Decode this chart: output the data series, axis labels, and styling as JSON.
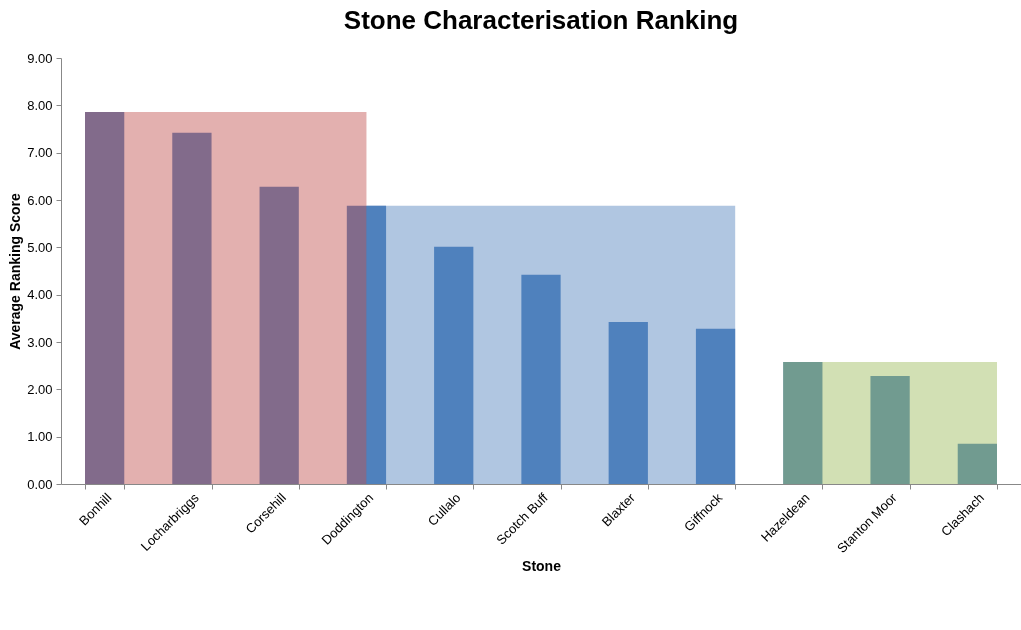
{
  "chart_data": {
    "type": "bar",
    "title": "Stone Characterisation Ranking",
    "xlabel": "Stone",
    "ylabel": "Average Ranking Score",
    "categories": [
      "Bonhill",
      "Locharbriggs",
      "Corsehill",
      "Doddington",
      "Cullalo",
      "Scotch Buff",
      "Blaxter",
      "Giffnock",
      "Hazeldean",
      "Stanton Moor",
      "Clashach"
    ],
    "values": [
      7.86,
      7.42,
      6.28,
      5.88,
      5.01,
      4.42,
      3.42,
      3.28,
      2.58,
      2.28,
      0.85
    ],
    "color": "#4f81bd",
    "ylim": [
      0,
      9
    ],
    "yticks": [
      {
        "value": 0,
        "label": "0.00"
      },
      {
        "value": 1,
        "label": "1.00"
      },
      {
        "value": 2,
        "label": "2.00"
      },
      {
        "value": 3,
        "label": "3.00"
      },
      {
        "value": 4,
        "label": "4.00"
      },
      {
        "value": 5,
        "label": "5.00"
      },
      {
        "value": 6,
        "label": "6.00"
      },
      {
        "value": 7,
        "label": "7.00"
      },
      {
        "value": 8,
        "label": "8.00"
      },
      {
        "value": 9,
        "label": "9.00"
      }
    ],
    "bands": [
      {
        "axis": "x",
        "from": "Bonhill",
        "to": "Doddington",
        "color": "#c0504d"
      },
      {
        "axis": "x",
        "from": "Doddington",
        "to": "Giffnock",
        "color": "#4f81bd"
      },
      {
        "axis": "x",
        "from": "Hazeldean",
        "to": "Clashach",
        "color": "#9bbb59"
      }
    ],
    "grid": false
  }
}
